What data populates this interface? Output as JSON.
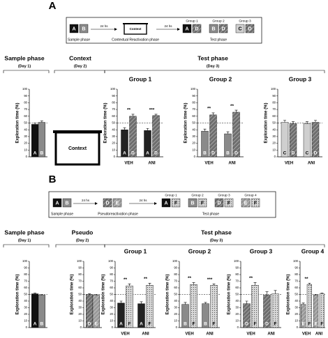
{
  "panels": [
    {
      "letter": "A",
      "schematic": {
        "sample": {
          "objects": [
            {
              "label": "A",
              "color": "#111111",
              "pattern": "solid"
            },
            {
              "label": "B",
              "color": "#8a8a8a",
              "pattern": "solid"
            }
          ],
          "label": "Sample phase"
        },
        "interval_1": "24 hs",
        "middle": {
          "box": "Context",
          "label": "Contextual Reactivation phase"
        },
        "interval_2": "24 hs",
        "test": {
          "groups": [
            {
              "name": "Group 1",
              "objects": [
                {
                  "label": "A",
                  "color": "#111111",
                  "pattern": "solid"
                },
                {
                  "label": "D",
                  "color": "#6e6e6e",
                  "pattern": "hatch"
                }
              ]
            },
            {
              "name": "Group 2",
              "objects": [
                {
                  "label": "B",
                  "color": "#8a8a8a",
                  "pattern": "solid"
                },
                {
                  "label": "D",
                  "color": "#6e6e6e",
                  "pattern": "hatch"
                }
              ]
            },
            {
              "name": "Group 3",
              "objects": [
                {
                  "label": "C",
                  "color": "#cfcfcf",
                  "pattern": "solid"
                },
                {
                  "label": "D",
                  "color": "#6e6e6e",
                  "pattern": "hatch"
                }
              ]
            }
          ],
          "label": "Test phase"
        }
      },
      "headers": [
        {
          "title": "Sample phase",
          "subtitle": "(Day 1)"
        },
        {
          "title": "Context",
          "subtitle": "(Day 2)"
        },
        {
          "title": "Test phase",
          "subtitle": "(Day 3)"
        }
      ],
      "context_box": "Context"
    },
    {
      "letter": "B",
      "schematic": {
        "sample": {
          "objects": [
            {
              "label": "A",
              "color": "#111111",
              "pattern": "solid"
            },
            {
              "label": "B",
              "color": "#8a8a8a",
              "pattern": "solid"
            }
          ],
          "label": "Sample phase"
        },
        "interval_1": "24 hs",
        "middle": {
          "objects": [
            {
              "label": "D",
              "color": "#6e6e6e",
              "pattern": "hatch"
            },
            {
              "label": "E",
              "color": "#9a9a9a",
              "pattern": "hatch"
            }
          ],
          "label": "Pseudoreactivation phase"
        },
        "interval_2": "24 hs",
        "test": {
          "groups": [
            {
              "name": "Group 1",
              "objects": [
                {
                  "label": "A",
                  "color": "#111111",
                  "pattern": "solid"
                },
                {
                  "label": "F",
                  "color": "#d8d8d8",
                  "pattern": "dots"
                }
              ]
            },
            {
              "name": "Group 2",
              "objects": [
                {
                  "label": "B",
                  "color": "#8a8a8a",
                  "pattern": "solid"
                },
                {
                  "label": "F",
                  "color": "#d8d8d8",
                  "pattern": "dots"
                }
              ]
            },
            {
              "name": "Group 3",
              "objects": [
                {
                  "label": "D",
                  "color": "#6e6e6e",
                  "pattern": "hatch"
                },
                {
                  "label": "F",
                  "color": "#d8d8d8",
                  "pattern": "dots"
                }
              ]
            },
            {
              "name": "Group 4",
              "objects": [
                {
                  "label": "E",
                  "color": "#9a9a9a",
                  "pattern": "hatch"
                },
                {
                  "label": "F",
                  "color": "#d8d8d8",
                  "pattern": "dots"
                }
              ]
            }
          ],
          "label": "Test phase"
        }
      },
      "headers": [
        {
          "title": "Sample phase",
          "subtitle": "(Day 1)"
        },
        {
          "title": "Pseudo",
          "subtitle": "(Day 2)"
        },
        {
          "title": "Test phase",
          "subtitle": "(Day 3)"
        }
      ]
    }
  ],
  "chart_data": [
    {
      "type": "bar",
      "ylabel": "Exploration time (%)",
      "categories": [
        null
      ],
      "series": [
        {
          "color": "#111111",
          "pattern": "solid",
          "values": [
            48
          ],
          "errors": [
            2
          ],
          "bar_labels": [
            "A"
          ]
        },
        {
          "color": "#8a8a8a",
          "pattern": "solid",
          "values": [
            51
          ],
          "errors": [
            2
          ],
          "bar_labels": [
            "B"
          ]
        }
      ],
      "ylim": [
        0,
        100
      ],
      "yticks": [
        0,
        10,
        20,
        30,
        40,
        50,
        60,
        70,
        80,
        90,
        100
      ],
      "reference_line": 50
    },
    {
      "type": "bar",
      "title": "Group 1",
      "ylabel": "Exploration time (%)",
      "categories": [
        "VEH",
        "ANI"
      ],
      "series": [
        {
          "color": "#222222",
          "pattern": "solid",
          "values": [
            40,
            39
          ],
          "errors": [
            3,
            3
          ],
          "bar_labels": [
            "A",
            "A"
          ]
        },
        {
          "color": "#6e6e6e",
          "pattern": "hatch",
          "values": [
            60,
            61
          ],
          "errors": [
            3,
            2
          ],
          "bar_labels": [
            "D",
            "D"
          ]
        }
      ],
      "annotations": [
        "**",
        "***"
      ],
      "ylim": [
        0,
        100
      ],
      "yticks": [
        0,
        10,
        20,
        30,
        40,
        50,
        60,
        70,
        80,
        90,
        100
      ],
      "reference_line": 50
    },
    {
      "type": "bar",
      "title": "Group 2",
      "ylabel": "Exploration time (%)",
      "categories": [
        "VEH",
        "ANI"
      ],
      "series": [
        {
          "color": "#8a8a8a",
          "pattern": "solid",
          "values": [
            38,
            34
          ],
          "errors": [
            3,
            3
          ],
          "bar_labels": [
            "B",
            "B"
          ]
        },
        {
          "color": "#6e6e6e",
          "pattern": "hatch",
          "values": [
            62,
            66
          ],
          "errors": [
            3,
            3
          ],
          "bar_labels": [
            "D",
            "D"
          ]
        }
      ],
      "annotations": [
        "**",
        "**"
      ],
      "ylim": [
        0,
        100
      ],
      "yticks": [
        0,
        10,
        20,
        30,
        40,
        50,
        60,
        70,
        80,
        90,
        100
      ],
      "reference_line": 50
    },
    {
      "type": "bar",
      "title": "Group 3",
      "ylabel": "Exploration time (%)",
      "categories": [
        "VEH",
        "ANI"
      ],
      "series": [
        {
          "color": "#cfcfcf",
          "pattern": "solid",
          "values": [
            51,
            49
          ],
          "errors": [
            3,
            3
          ],
          "bar_labels": [
            "C",
            "C"
          ]
        },
        {
          "color": "#6e6e6e",
          "pattern": "hatch",
          "values": [
            49,
            51
          ],
          "errors": [
            3,
            3
          ],
          "bar_labels": [
            "D",
            "D"
          ]
        }
      ],
      "ylim": [
        0,
        100
      ],
      "yticks": [
        0,
        10,
        20,
        30,
        40,
        50,
        60,
        70,
        80,
        90,
        100
      ],
      "reference_line": 50
    },
    {
      "type": "bar",
      "ylabel": "Exploration time (%)",
      "categories": [
        null
      ],
      "series": [
        {
          "color": "#111111",
          "pattern": "solid",
          "values": [
            51
          ],
          "errors": [
            1
          ],
          "bar_labels": [
            "A"
          ]
        },
        {
          "color": "#8a8a8a",
          "pattern": "solid",
          "values": [
            49
          ],
          "errors": [
            1
          ],
          "bar_labels": [
            "B"
          ]
        }
      ],
      "ylim": [
        0,
        100
      ],
      "yticks": [
        0,
        10,
        20,
        30,
        40,
        50,
        60,
        70,
        80,
        90,
        100
      ],
      "reference_line": 50
    },
    {
      "type": "bar",
      "ylabel": "Exploration time (%)",
      "categories": [
        null
      ],
      "series": [
        {
          "color": "#6e6e6e",
          "pattern": "hatch",
          "values": [
            50
          ],
          "errors": [
            1
          ],
          "bar_labels": [
            "D"
          ]
        },
        {
          "color": "#9a9a9a",
          "pattern": "hatch",
          "values": [
            49
          ],
          "errors": [
            1
          ],
          "bar_labels": [
            "E"
          ]
        }
      ],
      "ylim": [
        0,
        100
      ],
      "yticks": [
        0,
        10,
        20,
        30,
        40,
        50,
        60,
        70,
        80,
        90,
        100
      ],
      "reference_line": 50
    },
    {
      "type": "bar",
      "title": "Group 1",
      "ylabel": "Exploration time (%)",
      "categories": [
        "VEH",
        "ANI"
      ],
      "series": [
        {
          "color": "#222222",
          "pattern": "solid",
          "values": [
            37,
            36
          ],
          "errors": [
            3,
            3
          ],
          "bar_labels": [
            "A",
            "A"
          ]
        },
        {
          "color": "#d8d8d8",
          "pattern": "dots",
          "values": [
            63,
            64
          ],
          "errors": [
            3,
            3
          ],
          "bar_labels": [
            "F",
            "F"
          ]
        }
      ],
      "annotations": [
        "**",
        "**"
      ],
      "ylim": [
        0,
        100
      ],
      "yticks": [
        0,
        10,
        20,
        30,
        40,
        50,
        60,
        70,
        80,
        90,
        100
      ],
      "reference_line": 50
    },
    {
      "type": "bar",
      "title": "Group 2",
      "ylabel": "Exploration time (%)",
      "categories": [
        "VEH",
        "ANI"
      ],
      "series": [
        {
          "color": "#8a8a8a",
          "pattern": "solid",
          "values": [
            35,
            36
          ],
          "errors": [
            3,
            2
          ],
          "bar_labels": [
            "B",
            "B"
          ]
        },
        {
          "color": "#d8d8d8",
          "pattern": "dots",
          "values": [
            65,
            64
          ],
          "errors": [
            3,
            2
          ],
          "bar_labels": [
            "F",
            "F"
          ]
        }
      ],
      "annotations": [
        "**",
        "***"
      ],
      "ylim": [
        0,
        100
      ],
      "yticks": [
        0,
        10,
        20,
        30,
        40,
        50,
        60,
        70,
        80,
        90,
        100
      ],
      "reference_line": 50
    },
    {
      "type": "bar",
      "title": "Group 3",
      "ylabel": "Exploration time (%)",
      "categories": [
        "VEH",
        "ANI"
      ],
      "series": [
        {
          "color": "#6e6e6e",
          "pattern": "hatch",
          "values": [
            36,
            49
          ],
          "errors": [
            4,
            5
          ],
          "bar_labels": [
            "D",
            "D"
          ]
        },
        {
          "color": "#d8d8d8",
          "pattern": "dots",
          "values": [
            64,
            51
          ],
          "errors": [
            4,
            5
          ],
          "bar_labels": [
            "F",
            "F"
          ]
        }
      ],
      "annotations": [
        "**",
        null
      ],
      "ylim": [
        0,
        100
      ],
      "yticks": [
        0,
        10,
        20,
        30,
        40,
        50,
        60,
        70,
        80,
        90,
        100
      ],
      "reference_line": 50
    },
    {
      "type": "bar",
      "title": "Group 4",
      "ylabel": "Exploration time (%)",
      "categories": [
        "VEH",
        "ANI"
      ],
      "series": [
        {
          "color": "#9a9a9a",
          "pattern": "hatch",
          "values": [
            35,
            49
          ],
          "errors": [
            2,
            1
          ],
          "bar_labels": [
            "E",
            "E"
          ]
        },
        {
          "color": "#d8d8d8",
          "pattern": "dots",
          "values": [
            65,
            51
          ],
          "errors": [
            2,
            1
          ],
          "bar_labels": [
            "F",
            "F"
          ]
        }
      ],
      "annotations": [
        "**",
        null
      ],
      "ylim": [
        0,
        100
      ],
      "yticks": [
        0,
        10,
        20,
        30,
        40,
        50,
        60,
        70,
        80,
        90,
        100
      ],
      "reference_line": 50
    }
  ]
}
